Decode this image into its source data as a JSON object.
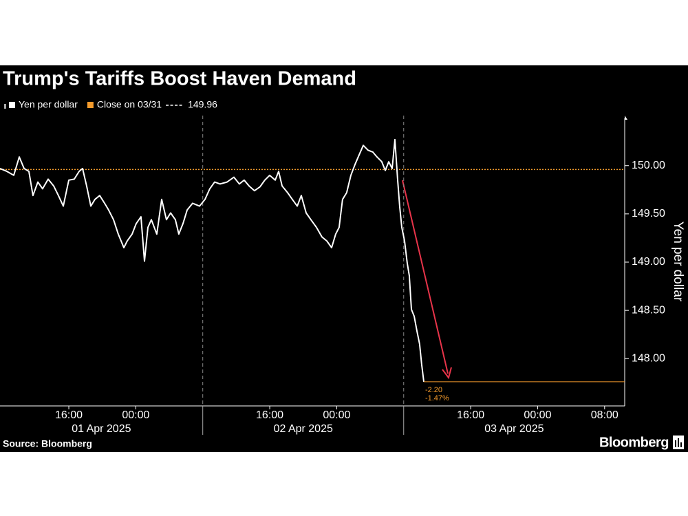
{
  "chart_data": {
    "type": "line",
    "title": "Trump's Tariffs Boost Haven Demand",
    "y_label": "Yen per dollar",
    "source": "Source: Bloomberg",
    "brand": "Bloomberg",
    "reference": {
      "name": "Close on 03/31",
      "value": 149.96,
      "color": "#f59b2c"
    },
    "change": {
      "value": -2.2,
      "label": "-2.20"
    },
    "change_pct": {
      "value": -1.47,
      "label": "-1.47%"
    },
    "xlim": [
      7.78,
      82.4
    ],
    "xticks": [
      {
        "value": 16,
        "label": "16:00"
      },
      {
        "value": 24,
        "label": "00:00"
      },
      {
        "value": 40,
        "label": "16:00"
      },
      {
        "value": 48,
        "label": "00:00"
      },
      {
        "value": 64,
        "label": "16:00"
      },
      {
        "value": 72,
        "label": "00:00"
      },
      {
        "value": 80,
        "label": "08:00"
      }
    ],
    "day_breaks": [
      32,
      56
    ],
    "day_labels": [
      "01 Apr 2025",
      "02 Apr 2025",
      "03 Apr 2025"
    ],
    "ylim": [
      147.51,
      150.49
    ],
    "yticks": [
      {
        "value": 148,
        "label": "148.00"
      },
      {
        "value": 148.5,
        "label": "148.50"
      },
      {
        "value": 149,
        "label": "149.00"
      },
      {
        "value": 149.5,
        "label": "149.50"
      },
      {
        "value": 150,
        "label": "150.00"
      }
    ],
    "x": [
      7.78,
      8.6,
      9.42,
      10.08,
      10.66,
      11.23,
      11.72,
      12.3,
      12.87,
      13.53,
      14.19,
      14.76,
      15.34,
      16.0,
      16.65,
      17.23,
      17.64,
      18.13,
      18.63,
      19.12,
      19.69,
      20.27,
      20.76,
      21.34,
      21.91,
      22.57,
      22.98,
      23.56,
      24.05,
      24.62,
      25.04,
      25.45,
      25.86,
      26.51,
      27.09,
      27.66,
      28.16,
      28.73,
      29.14,
      29.64,
      30.13,
      30.79,
      31.61,
      32.27,
      32.84,
      33.42,
      34.07,
      34.9,
      35.72,
      36.37,
      36.95,
      37.52,
      38.18,
      38.84,
      39.41,
      39.99,
      40.65,
      41.06,
      41.47,
      42.13,
      42.7,
      43.28,
      43.77,
      44.35,
      44.92,
      45.58,
      46.24,
      46.81,
      47.39,
      47.88,
      48.29,
      48.7,
      49.19,
      49.69,
      50.18,
      50.67,
      51.17,
      51.74,
      52.32,
      52.81,
      53.38,
      53.8,
      54.21,
      54.62,
      54.95,
      55.27,
      55.52,
      55.77,
      56.1,
      56.42,
      56.67,
      56.92,
      57.25,
      57.57,
      57.9,
      58.15,
      58.4
    ],
    "series": [
      {
        "name": "Yen per dollar",
        "color": "#ffffff",
        "values": [
          149.97,
          149.94,
          149.9,
          150.09,
          149.97,
          149.94,
          149.69,
          149.83,
          149.76,
          149.86,
          149.79,
          149.69,
          149.58,
          149.85,
          149.86,
          149.94,
          149.97,
          149.79,
          149.58,
          149.65,
          149.69,
          149.61,
          149.54,
          149.44,
          149.29,
          149.15,
          149.22,
          149.29,
          149.4,
          149.47,
          149.01,
          149.36,
          149.44,
          149.29,
          149.65,
          149.44,
          149.51,
          149.44,
          149.29,
          149.4,
          149.54,
          149.61,
          149.58,
          149.65,
          149.76,
          149.83,
          149.81,
          149.83,
          149.88,
          149.81,
          149.85,
          149.79,
          149.74,
          149.78,
          149.85,
          149.9,
          149.85,
          149.94,
          149.79,
          149.72,
          149.65,
          149.58,
          149.69,
          149.51,
          149.44,
          149.36,
          149.26,
          149.22,
          149.15,
          149.29,
          149.36,
          149.65,
          149.72,
          149.9,
          150.01,
          150.11,
          150.21,
          150.16,
          150.14,
          150.09,
          150.04,
          149.95,
          150.04,
          149.97,
          150.27,
          149.86,
          149.58,
          149.36,
          149.22,
          148.99,
          148.86,
          148.51,
          148.44,
          148.29,
          148.15,
          147.94,
          147.76
        ]
      }
    ]
  }
}
